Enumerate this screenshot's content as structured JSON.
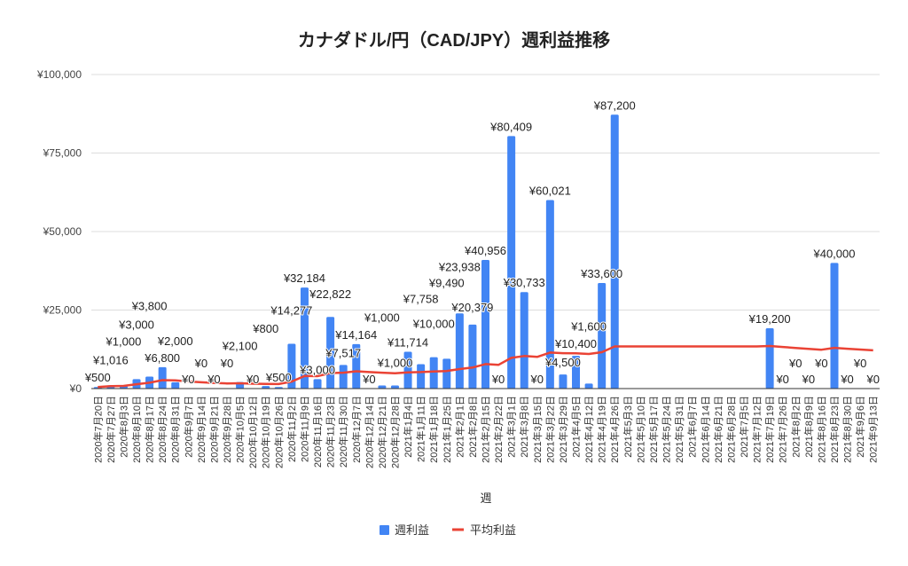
{
  "chart_data": {
    "type": "bar",
    "title": "カナダドル/円（CAD/JPY）週利益推移",
    "xlabel": "週",
    "ylabel": "",
    "ylim": [
      0,
      100000
    ],
    "yticks": [
      "¥0",
      "¥25,000",
      "¥50,000",
      "¥75,000",
      "¥100,000"
    ],
    "ytick_values": [
      0,
      25000,
      50000,
      75000,
      100000
    ],
    "grid": true,
    "legend_position": "bottom",
    "colors": {
      "bar": "#4285f4",
      "line": "#ea4335"
    },
    "categories": [
      "2020年7月20日",
      "2020年7月27日",
      "2020年8月3日",
      "2020年8月10日",
      "2020年8月17日",
      "2020年8月24日",
      "2020年8月31日",
      "2020年9月7日",
      "2020年9月14日",
      "2020年9月21日",
      "2020年9月28日",
      "2020年10月5日",
      "2020年10月12日",
      "2020年10月19日",
      "2020年10月26日",
      "2020年11月2日",
      "2020年11月9日",
      "2020年11月16日",
      "2020年11月23日",
      "2020年11月30日",
      "2020年12月7日",
      "2020年12月14日",
      "2020年12月21日",
      "2020年12月28日",
      "2021年1月4日",
      "2021年1月11日",
      "2021年1月18日",
      "2021年1月25日",
      "2021年2月1日",
      "2021年2月8日",
      "2021年2月15日",
      "2021年2月22日",
      "2021年3月1日",
      "2021年3月8日",
      "2021年3月15日",
      "2021年3月22日",
      "2021年3月29日",
      "2021年4月5日",
      "2021年4月12日",
      "2021年4月19日",
      "2021年4月26日",
      "2021年5月3日",
      "2021年5月10日",
      "2021年5月17日",
      "2021年5月24日",
      "2021年5月31日",
      "2021年6月7日",
      "2021年6月14日",
      "2021年6月21日",
      "2021年6月28日",
      "2021年7月5日",
      "2021年7月12日",
      "2021年7月19日",
      "2021年7月26日",
      "2021年8月2日",
      "2021年8月9日",
      "2021年8月16日",
      "2021年8月23日",
      "2021年8月30日",
      "2021年9月6日",
      "2021年9月13日"
    ],
    "series": [
      {
        "name": "週利益",
        "type": "bar",
        "values": [
          500,
          1016,
          1000,
          3000,
          3800,
          6800,
          2000,
          0,
          0,
          0,
          0,
          2100,
          0,
          800,
          500,
          14277,
          32184,
          3000,
          22822,
          7517,
          14164,
          0,
          1000,
          1000,
          11714,
          7758,
          10000,
          9490,
          23938,
          20379,
          40956,
          0,
          80409,
          30733,
          0,
          60021,
          4500,
          10400,
          1600,
          33600,
          87200,
          null,
          null,
          null,
          null,
          null,
          null,
          null,
          null,
          null,
          null,
          null,
          19200,
          0,
          0,
          0,
          0,
          40000,
          0,
          0,
          0
        ]
      },
      {
        "name": "平均利益",
        "type": "line",
        "values": [
          500,
          758,
          839,
          1379,
          1863,
          2686,
          2588,
          2265,
          2013,
          1812,
          1647,
          1685,
          1555,
          1501,
          1434,
          2237,
          3999,
          3943,
          4937,
          5066,
          5499,
          5249,
          5064,
          4895,
          5168,
          5267,
          5443,
          5587,
          6220,
          6692,
          7797,
          7554,
          9761,
          10378,
          10082,
          11469,
          11280,
          11257,
          11010,
          11574,
          13419,
          13419,
          13419,
          13419,
          13419,
          13419,
          13419,
          13419,
          13419,
          13419,
          13419,
          13419,
          13557,
          13241,
          12940,
          12653,
          12378,
          12965,
          12695,
          12436,
          12188
        ]
      }
    ]
  }
}
